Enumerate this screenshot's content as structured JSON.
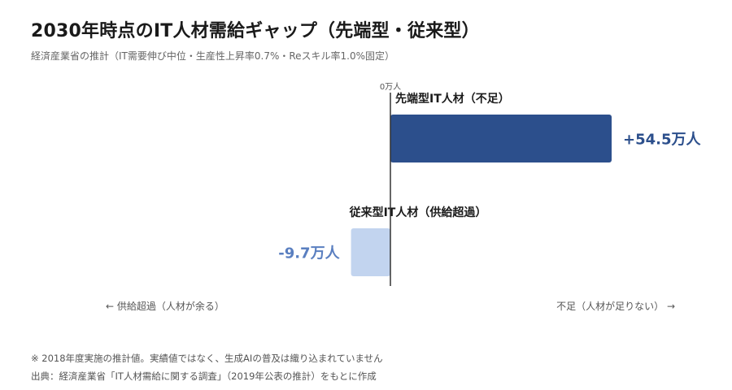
{
  "header": {
    "title": "2030年時点のIT人材需給ギャップ（先端型・従来型）",
    "subtitle": "経済産業省の推計（IT需要伸び中位・生産性上昇率0.7%・Reスキル率1.0%固定）"
  },
  "chart_data": {
    "type": "bar",
    "orientation": "horizontal",
    "categories": [
      "先端型IT人材（不足）",
      "従来型IT人材（供給超過）"
    ],
    "values": [
      54.5,
      -9.7
    ],
    "value_labels": [
      "+54.5万人",
      "-9.7万人"
    ],
    "zero_label": "0万人",
    "xlim": [
      -10,
      56
    ],
    "colors": [
      "#2c4f8c",
      "#c2d4ef"
    ],
    "label_colors": [
      "#2c4f8c",
      "#5a7fc0"
    ],
    "left_annotation": "← 供給超過（人材が余る）",
    "right_annotation": "不足（人材が足りない） →"
  },
  "footer": {
    "note": "※ 2018年度実施の推計値。実績値ではなく、生成AIの普及は織り込まれていません",
    "source": "出典：経済産業省「IT人材需給に関する調査」（2019年公表の推計）をもとに作成"
  }
}
